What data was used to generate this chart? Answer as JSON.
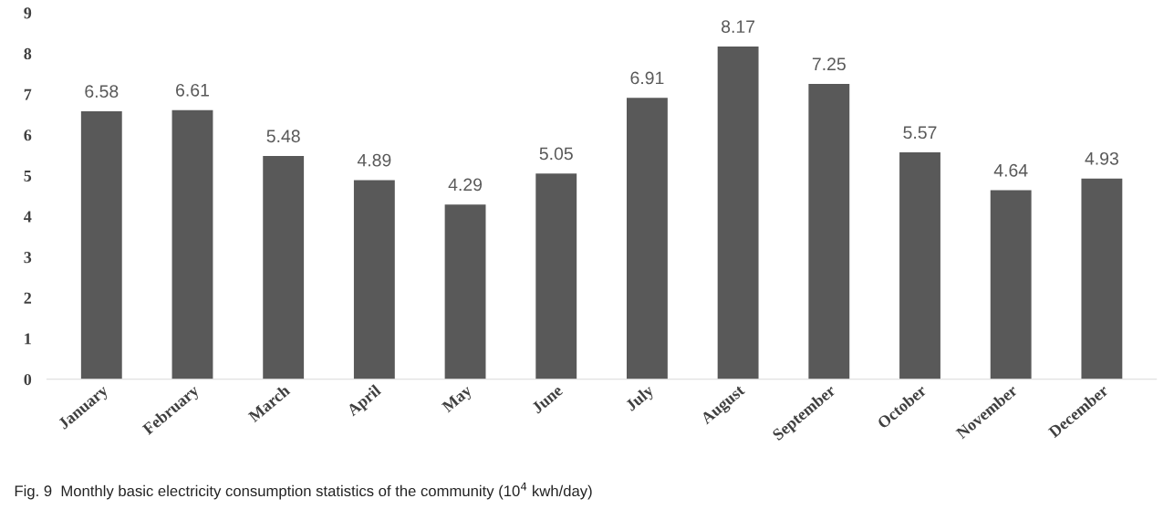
{
  "chart_data": {
    "type": "bar",
    "categories": [
      "January",
      "February",
      "March",
      "April",
      "May",
      "June",
      "July",
      "August",
      "September",
      "October",
      "November",
      "December"
    ],
    "values": [
      6.58,
      6.61,
      5.48,
      4.89,
      4.29,
      5.05,
      6.91,
      8.17,
      7.25,
      5.57,
      4.64,
      4.93
    ],
    "color": "#595959",
    "ylim": [
      0,
      9
    ],
    "yticks": [
      0,
      1,
      2,
      3,
      4,
      5,
      6,
      7,
      8,
      9
    ],
    "data_labels": true,
    "grid": false,
    "legend": false,
    "annotations": [
      "Fig. 9  Monthly basic electricity consumption statistics of the community (10$^{4}$ kwh/day)"
    ]
  }
}
